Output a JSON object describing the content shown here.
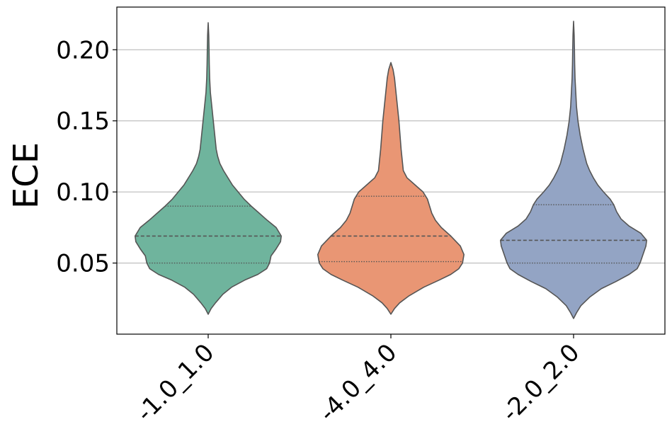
{
  "chart_data": {
    "type": "violin",
    "title": "",
    "xlabel": "",
    "ylabel": "ECE",
    "ylim": [
      0.0,
      0.23
    ],
    "yticks": [
      0.05,
      0.1,
      0.15,
      0.2
    ],
    "ytick_labels": [
      "0.05",
      "0.10",
      "0.15",
      "0.20"
    ],
    "grid": "horizontal",
    "categories": [
      "-1.0_1.0",
      "-4.0_4.0",
      "-2.0_2.0"
    ],
    "colors": [
      "#6fb49d",
      "#e99674",
      "#93a4c4"
    ],
    "edge_color": "#555555",
    "violins": [
      {
        "category": "-1.0_1.0",
        "min": 0.014,
        "max": 0.219,
        "q1": 0.05,
        "median": 0.069,
        "q3": 0.09,
        "density": [
          [
            0.014,
            0.0
          ],
          [
            0.018,
            0.04
          ],
          [
            0.022,
            0.1
          ],
          [
            0.028,
            0.2
          ],
          [
            0.033,
            0.32
          ],
          [
            0.038,
            0.5
          ],
          [
            0.042,
            0.68
          ],
          [
            0.046,
            0.8
          ],
          [
            0.05,
            0.84
          ],
          [
            0.055,
            0.86
          ],
          [
            0.06,
            0.93
          ],
          [
            0.065,
            0.99
          ],
          [
            0.069,
            1.0
          ],
          [
            0.075,
            0.93
          ],
          [
            0.08,
            0.81
          ],
          [
            0.085,
            0.7
          ],
          [
            0.09,
            0.59
          ],
          [
            0.095,
            0.49
          ],
          [
            0.1,
            0.41
          ],
          [
            0.105,
            0.33
          ],
          [
            0.11,
            0.27
          ],
          [
            0.115,
            0.21
          ],
          [
            0.12,
            0.16
          ],
          [
            0.125,
            0.13
          ],
          [
            0.13,
            0.11
          ],
          [
            0.14,
            0.09
          ],
          [
            0.15,
            0.07
          ],
          [
            0.16,
            0.05
          ],
          [
            0.17,
            0.03
          ],
          [
            0.18,
            0.02
          ],
          [
            0.19,
            0.015
          ],
          [
            0.2,
            0.012
          ],
          [
            0.21,
            0.008
          ],
          [
            0.219,
            0.0
          ]
        ]
      },
      {
        "category": "-4.0_4.0",
        "min": 0.014,
        "max": 0.191,
        "q1": 0.051,
        "median": 0.069,
        "q3": 0.097,
        "density": [
          [
            0.014,
            0.0
          ],
          [
            0.018,
            0.05
          ],
          [
            0.022,
            0.12
          ],
          [
            0.027,
            0.25
          ],
          [
            0.033,
            0.45
          ],
          [
            0.038,
            0.66
          ],
          [
            0.042,
            0.82
          ],
          [
            0.046,
            0.93
          ],
          [
            0.05,
            0.98
          ],
          [
            0.056,
            1.0
          ],
          [
            0.062,
            0.95
          ],
          [
            0.069,
            0.82
          ],
          [
            0.075,
            0.69
          ],
          [
            0.08,
            0.61
          ],
          [
            0.085,
            0.56
          ],
          [
            0.09,
            0.53
          ],
          [
            0.095,
            0.5
          ],
          [
            0.1,
            0.44
          ],
          [
            0.105,
            0.33
          ],
          [
            0.11,
            0.22
          ],
          [
            0.115,
            0.17
          ],
          [
            0.12,
            0.16
          ],
          [
            0.13,
            0.14
          ],
          [
            0.14,
            0.125
          ],
          [
            0.15,
            0.11
          ],
          [
            0.16,
            0.09
          ],
          [
            0.17,
            0.07
          ],
          [
            0.18,
            0.05
          ],
          [
            0.186,
            0.03
          ],
          [
            0.191,
            0.0
          ]
        ]
      },
      {
        "category": "-2.0_2.0",
        "min": 0.011,
        "max": 0.22,
        "q1": 0.05,
        "median": 0.066,
        "q3": 0.091,
        "density": [
          [
            0.011,
            0.0
          ],
          [
            0.015,
            0.04
          ],
          [
            0.02,
            0.1
          ],
          [
            0.026,
            0.22
          ],
          [
            0.032,
            0.38
          ],
          [
            0.037,
            0.58
          ],
          [
            0.042,
            0.76
          ],
          [
            0.046,
            0.87
          ],
          [
            0.05,
            0.91
          ],
          [
            0.056,
            0.95
          ],
          [
            0.062,
            0.99
          ],
          [
            0.066,
            1.0
          ],
          [
            0.071,
            0.92
          ],
          [
            0.076,
            0.76
          ],
          [
            0.081,
            0.65
          ],
          [
            0.086,
            0.59
          ],
          [
            0.091,
            0.55
          ],
          [
            0.095,
            0.5
          ],
          [
            0.1,
            0.41
          ],
          [
            0.105,
            0.33
          ],
          [
            0.11,
            0.27
          ],
          [
            0.115,
            0.22
          ],
          [
            0.12,
            0.18
          ],
          [
            0.13,
            0.13
          ],
          [
            0.14,
            0.09
          ],
          [
            0.15,
            0.06
          ],
          [
            0.16,
            0.04
          ],
          [
            0.17,
            0.03
          ],
          [
            0.18,
            0.02
          ],
          [
            0.19,
            0.015
          ],
          [
            0.2,
            0.012
          ],
          [
            0.21,
            0.008
          ],
          [
            0.22,
            0.0
          ]
        ]
      }
    ]
  }
}
